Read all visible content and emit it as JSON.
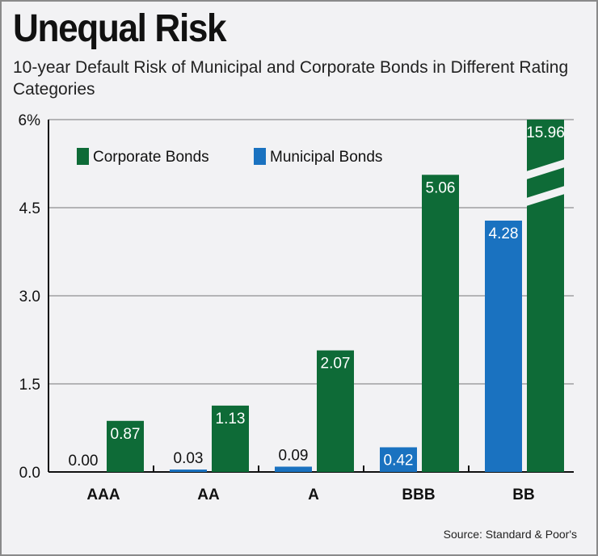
{
  "chart_data": {
    "type": "bar",
    "title": "Unequal Risk",
    "subtitle": "10-year Default Risk of Municipal and Corporate Bonds in Different Rating Categories",
    "categories": [
      "AAA",
      "AA",
      "A",
      "BBB",
      "BB"
    ],
    "series": [
      {
        "name": "Municipal Bonds",
        "color": "#1a72c0",
        "values": [
          0.0,
          0.03,
          0.09,
          0.42,
          4.28
        ],
        "labels": [
          "0.00",
          "0.03",
          "0.09",
          "0.42",
          "4.28"
        ]
      },
      {
        "name": "Corporate Bonds",
        "color": "#0e6b37",
        "values": [
          0.87,
          1.13,
          2.07,
          5.06,
          15.96
        ],
        "labels": [
          "0.87",
          "1.13",
          "2.07",
          "5.06",
          "15.96"
        ]
      }
    ],
    "yticks": [
      "0.0",
      "1.5",
      "3.0",
      "4.5",
      "6%"
    ],
    "ylim": [
      0,
      6
    ],
    "axis_break": "BB corporate bar truncated at 6%",
    "grid": true,
    "legend": "top-left",
    "source": "Source: Standard & Poor's"
  }
}
